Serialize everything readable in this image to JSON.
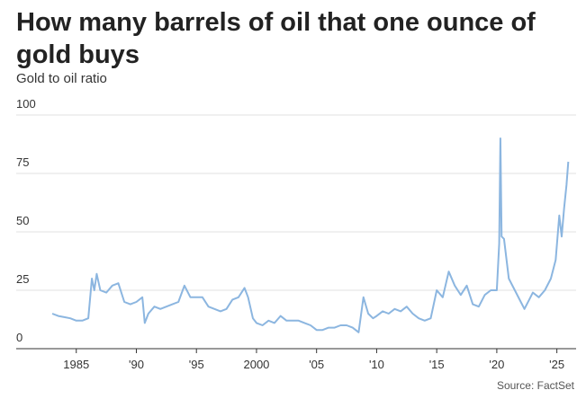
{
  "chart_data": {
    "type": "line",
    "title_lines": [
      "How many barrels of oil that one ounce of",
      "gold buys"
    ],
    "subtitle": "Gold to oil ratio",
    "source": "Source: FactSet",
    "x": [
      1983.0,
      1983.5,
      1984.0,
      1984.5,
      1985.0,
      1985.5,
      1986.0,
      1986.3,
      1986.5,
      1986.7,
      1987.0,
      1987.5,
      1988.0,
      1988.5,
      1989.0,
      1989.5,
      1990.0,
      1990.5,
      1990.7,
      1991.0,
      1991.5,
      1992.0,
      1992.5,
      1993.0,
      1993.5,
      1994.0,
      1994.5,
      1995.0,
      1995.5,
      1996.0,
      1996.5,
      1997.0,
      1997.5,
      1998.0,
      1998.5,
      1999.0,
      1999.3,
      1999.7,
      2000.0,
      2000.5,
      2001.0,
      2001.5,
      2002.0,
      2002.5,
      2003.0,
      2003.5,
      2004.0,
      2004.5,
      2005.0,
      2005.5,
      2006.0,
      2006.5,
      2007.0,
      2007.5,
      2008.0,
      2008.5,
      2008.9,
      2009.3,
      2009.7,
      2010.0,
      2010.5,
      2011.0,
      2011.5,
      2012.0,
      2012.5,
      2013.0,
      2013.5,
      2014.0,
      2014.5,
      2015.0,
      2015.5,
      2016.0,
      2016.5,
      2017.0,
      2017.5,
      2018.0,
      2018.5,
      2019.0,
      2019.5,
      2020.0,
      2020.2,
      2020.3,
      2020.4,
      2020.6,
      2021.0,
      2021.5,
      2022.0,
      2022.3,
      2022.7,
      2023.0,
      2023.5,
      2024.0,
      2024.5,
      2024.9,
      2025.2,
      2025.4,
      2025.6,
      2025.8,
      2025.95
    ],
    "series": [
      {
        "name": "Gold to oil ratio",
        "color": "#8cb6e0",
        "values": [
          15,
          14,
          13.5,
          13,
          12,
          12,
          13,
          30,
          25,
          32,
          25,
          24,
          27,
          28,
          20,
          19,
          20,
          22,
          11,
          15,
          18,
          17,
          18,
          19,
          20,
          27,
          22,
          22,
          22,
          18,
          17,
          16,
          17,
          21,
          22,
          26,
          22,
          13,
          11,
          10,
          12,
          11,
          14,
          12,
          12,
          12,
          11,
          10,
          8,
          8,
          9,
          9,
          10,
          10,
          9,
          7,
          22,
          15,
          13,
          14,
          16,
          15,
          17,
          16,
          18,
          15,
          13,
          12,
          13,
          25,
          22,
          33,
          27,
          23,
          27,
          19,
          18,
          23,
          25,
          25,
          45,
          90,
          48,
          47,
          30,
          25,
          20,
          17,
          21,
          24,
          22,
          25,
          30,
          38,
          57,
          48,
          60,
          70,
          80
        ]
      }
    ],
    "xlim": [
      1980,
      2026.6
    ],
    "xticks": [
      1985,
      {
        "value": 1990,
        "label": "'90"
      },
      {
        "value": 1995,
        "label": "'95"
      },
      2000,
      {
        "value": 2005,
        "label": "'05"
      },
      {
        "value": 2010,
        "label": "'10"
      },
      {
        "value": 2015,
        "label": "'15"
      },
      {
        "value": 2020,
        "label": "'20"
      },
      {
        "value": 2025,
        "label": "'25"
      }
    ],
    "ylim": [
      0,
      100
    ],
    "yticks": [
      0,
      25,
      50,
      75,
      100
    ],
    "grid": true
  }
}
